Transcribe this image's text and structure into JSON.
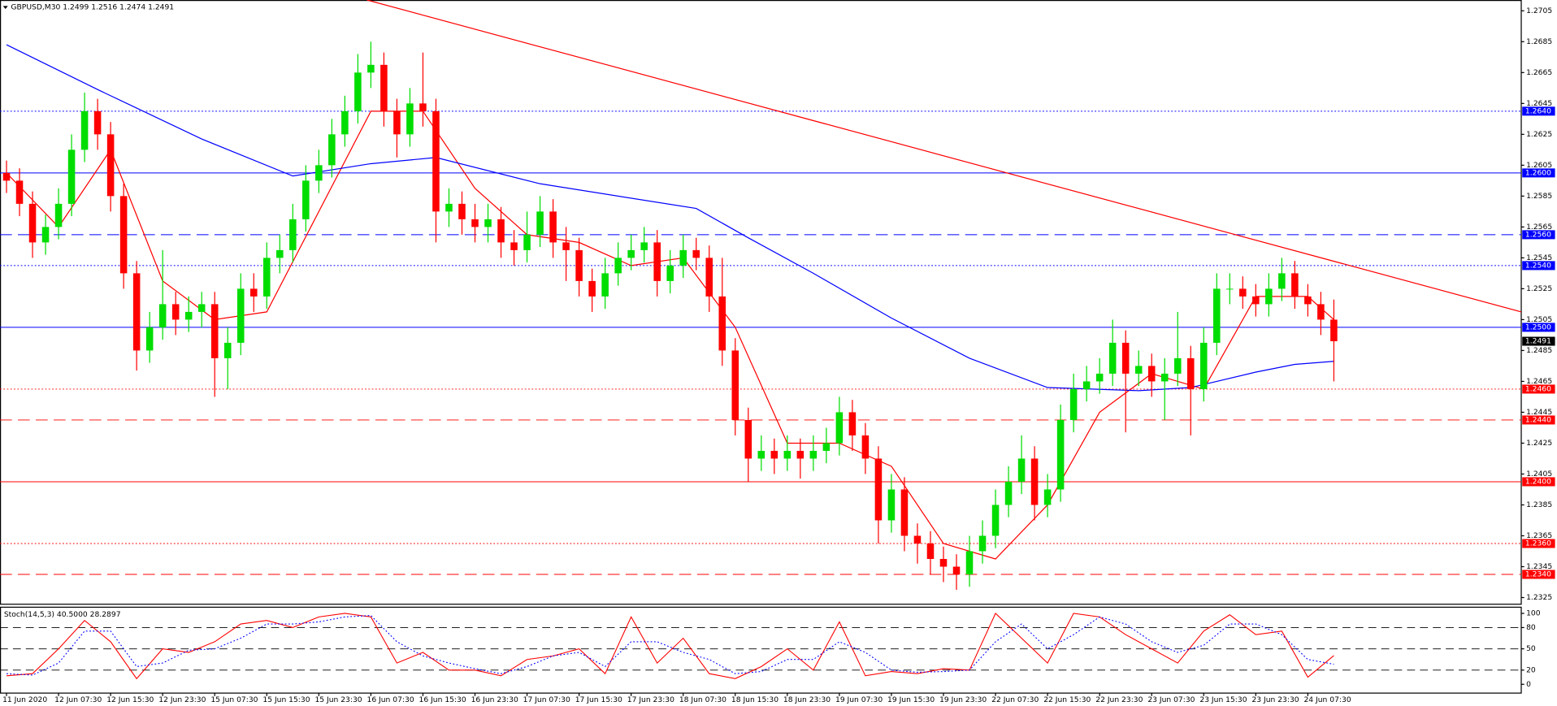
{
  "header": "GBPUSD,M30  1.2499 1.2516 1.2474 1.2491",
  "chart_data": [
    {
      "type": "candlestick",
      "categories": [
        "11 Jun 2020",
        null,
        null,
        null,
        "12 Jun 07:30",
        null,
        null,
        null,
        "12 Jun 15:30",
        null,
        null,
        null,
        "12 Jun 23:30",
        null,
        null,
        null,
        "15 Jun 07:30",
        null,
        null,
        null,
        "15 Jun 15:30",
        null,
        null,
        null,
        "15 Jun 23:30",
        null,
        null,
        null,
        "16 Jun 07:30",
        null,
        null,
        null,
        "16 Jun 15:30",
        null,
        null,
        null,
        "16 Jun 23:30",
        null,
        null,
        null,
        "17 Jun 07:30",
        null,
        null,
        null,
        "17 Jun 15:30",
        null,
        null,
        null,
        "17 Jun 23:30",
        null,
        null,
        null,
        "18 Jun 07:30",
        null,
        null,
        null,
        "18 Jun 15:30",
        null,
        null,
        null,
        "18 Jun 23:30",
        null,
        null,
        null,
        "19 Jun 07:30",
        null,
        null,
        null,
        "19 Jun 15:30",
        null,
        null,
        null,
        "19 Jun 23:30",
        null,
        null,
        null,
        "22 Jun 07:30",
        null,
        null,
        null,
        "22 Jun 15:30",
        null,
        null,
        null,
        "22 Jun 23:30",
        null,
        null,
        null,
        "23 Jun 07:30",
        null,
        null,
        null,
        "23 Jun 15:30",
        null,
        null,
        null,
        "23 Jun 23:30",
        null,
        null,
        null,
        "24 Jun 07:30",
        null,
        null
      ],
      "open": [
        1.26,
        1.2595,
        1.258,
        1.2555,
        1.2565,
        1.258,
        1.2615,
        1.264,
        1.2625,
        1.2585,
        1.2535,
        1.2485,
        1.25,
        1.2515,
        1.2505,
        1.251,
        1.2515,
        1.248,
        1.249,
        1.2525,
        1.252,
        1.2545,
        1.255,
        1.257,
        1.2595,
        1.2605,
        1.2625,
        1.264,
        1.2665,
        1.267,
        1.264,
        1.2625,
        1.2645,
        1.264,
        1.2575,
        1.258,
        1.257,
        1.2565,
        1.257,
        1.2555,
        1.255,
        1.256,
        1.2575,
        1.2555,
        1.255,
        1.253,
        1.252,
        1.2535,
        1.2545,
        1.255,
        1.2555,
        1.253,
        1.254,
        1.255,
        1.2545,
        1.252,
        1.2485,
        1.244,
        1.2415,
        1.242,
        1.2415,
        1.242,
        1.2415,
        1.242,
        1.2425,
        1.2445,
        1.243,
        1.2415,
        1.2375,
        1.2395,
        1.2365,
        1.236,
        1.235,
        1.2345,
        1.234,
        1.2355,
        1.2365,
        1.2385,
        1.24,
        1.2415,
        1.2385,
        1.2395,
        1.244,
        1.246,
        1.2465,
        1.247,
        1.249,
        1.247,
        1.2475,
        1.2465,
        1.247,
        1.248,
        1.246,
        1.249,
        1.2525,
        1.2525,
        1.252,
        1.2515,
        1.2525,
        1.2535,
        1.252,
        1.2515,
        1.2505
      ],
      "high": [
        1.2608,
        1.2603,
        1.2588,
        1.2573,
        1.259,
        1.2625,
        1.2652,
        1.2648,
        1.2633,
        1.2593,
        1.2543,
        1.251,
        1.255,
        1.2523,
        1.252,
        1.2523,
        1.2523,
        1.25,
        1.2535,
        1.2535,
        1.2555,
        1.256,
        1.258,
        1.2605,
        1.2615,
        1.2635,
        1.265,
        1.2677,
        1.2685,
        1.2678,
        1.2648,
        1.2655,
        1.2678,
        1.2648,
        1.259,
        1.2588,
        1.258,
        1.258,
        1.2578,
        1.2563,
        1.2575,
        1.2585,
        1.2583,
        1.2565,
        1.2558,
        1.2538,
        1.2545,
        1.2555,
        1.256,
        1.2565,
        1.2563,
        1.255,
        1.256,
        1.2558,
        1.2553,
        1.2545,
        1.2493,
        1.2448,
        1.243,
        1.2428,
        1.243,
        1.2428,
        1.243,
        1.2435,
        1.2455,
        1.2453,
        1.2438,
        1.2423,
        1.2405,
        1.2403,
        1.2373,
        1.2368,
        1.2358,
        1.2353,
        1.2365,
        1.2375,
        1.2395,
        1.241,
        1.243,
        1.2423,
        1.2405,
        1.245,
        1.247,
        1.2475,
        1.248,
        1.2505,
        1.2498,
        1.2485,
        1.2483,
        1.248,
        1.251,
        1.2488,
        1.25,
        1.2535,
        1.2535,
        1.2533,
        1.2528,
        1.2535,
        1.2545,
        1.2543,
        1.2528,
        1.2523,
        1.2518
      ],
      "low": [
        1.2587,
        1.2572,
        1.2545,
        1.2547,
        1.2557,
        1.2572,
        1.2607,
        1.2615,
        1.2575,
        1.2525,
        1.2472,
        1.2477,
        1.2492,
        1.2495,
        1.2497,
        1.25,
        1.2455,
        1.246,
        1.2482,
        1.251,
        1.2512,
        1.2535,
        1.2542,
        1.2562,
        1.2587,
        1.2597,
        1.2617,
        1.2632,
        1.2655,
        1.263,
        1.261,
        1.2617,
        1.263,
        1.2555,
        1.2565,
        1.256,
        1.2555,
        1.2555,
        1.2545,
        1.254,
        1.2542,
        1.2552,
        1.2545,
        1.253,
        1.252,
        1.251,
        1.2512,
        1.2527,
        1.2537,
        1.2542,
        1.252,
        1.2522,
        1.2532,
        1.2537,
        1.251,
        1.2475,
        1.243,
        1.24,
        1.2407,
        1.2405,
        1.2407,
        1.2402,
        1.2407,
        1.2412,
        1.2417,
        1.242,
        1.2405,
        1.236,
        1.2367,
        1.2355,
        1.2347,
        1.234,
        1.2335,
        1.233,
        1.2332,
        1.2347,
        1.2357,
        1.2377,
        1.2392,
        1.2375,
        1.2377,
        1.2387,
        1.2432,
        1.2452,
        1.2457,
        1.2462,
        1.2432,
        1.2462,
        1.2455,
        1.244,
        1.2462,
        1.243,
        1.2452,
        1.2482,
        1.2515,
        1.2512,
        1.2507,
        1.2507,
        1.2517,
        1.2512,
        1.2507,
        1.2495,
        1.2465
      ],
      "close": [
        1.2595,
        1.258,
        1.2555,
        1.2565,
        1.258,
        1.2615,
        1.264,
        1.2625,
        1.2585,
        1.2535,
        1.2485,
        1.25,
        1.2515,
        1.2505,
        1.251,
        1.2515,
        1.248,
        1.249,
        1.2525,
        1.252,
        1.2545,
        1.255,
        1.257,
        1.2595,
        1.2605,
        1.2625,
        1.264,
        1.2665,
        1.267,
        1.264,
        1.2625,
        1.2645,
        1.264,
        1.2575,
        1.258,
        1.257,
        1.2565,
        1.257,
        1.2555,
        1.255,
        1.256,
        1.2575,
        1.2555,
        1.255,
        1.253,
        1.252,
        1.2535,
        1.2545,
        1.255,
        1.2555,
        1.253,
        1.254,
        1.255,
        1.2545,
        1.252,
        1.2485,
        1.244,
        1.2415,
        1.242,
        1.2415,
        1.242,
        1.2415,
        1.242,
        1.2425,
        1.2445,
        1.243,
        1.2415,
        1.2375,
        1.2395,
        1.2365,
        1.236,
        1.235,
        1.2345,
        1.234,
        1.2355,
        1.2365,
        1.2385,
        1.24,
        1.2415,
        1.2385,
        1.2395,
        1.244,
        1.246,
        1.2465,
        1.247,
        1.249,
        1.247,
        1.2475,
        1.2465,
        1.247,
        1.248,
        1.246,
        1.249,
        1.2525,
        1.2525,
        1.252,
        1.2515,
        1.2525,
        1.2535,
        1.252,
        1.2515,
        1.2505,
        1.2491
      ],
      "up_color": "#00dd00",
      "down_color": "#ff0000",
      "xlim": [
        -0.5,
        116.4
      ],
      "ylim": [
        1.2321,
        1.2712
      ],
      "yticks": [
        1.2705,
        1.2685,
        1.2665,
        1.2645,
        1.2625,
        1.2605,
        1.2585,
        1.2565,
        1.2545,
        1.2525,
        1.2505,
        1.2485,
        1.2465,
        1.2445,
        1.2425,
        1.2405,
        1.2385,
        1.2365,
        1.2345,
        1.2325
      ],
      "moving_averages": [
        {
          "color": "#ff0000",
          "x": [
            0,
            4,
            8,
            12,
            16,
            20,
            24,
            28,
            32,
            36,
            40,
            44,
            48,
            52,
            56,
            60,
            64,
            68,
            72,
            76,
            80,
            84,
            88,
            92,
            96,
            100,
            102
          ],
          "values": [
            1.26,
            1.2565,
            1.2615,
            1.253,
            1.2505,
            1.251,
            1.2575,
            1.264,
            1.264,
            1.259,
            1.256,
            1.2555,
            1.254,
            1.2545,
            1.25,
            1.2425,
            1.2425,
            1.241,
            1.236,
            1.235,
            1.2385,
            1.2445,
            1.247,
            1.246,
            1.252,
            1.252,
            1.2505
          ]
        },
        {
          "color": "#0000ff",
          "x": [
            0,
            7,
            15,
            22,
            28,
            33,
            41,
            53,
            57,
            62,
            68,
            74,
            80,
            87,
            91,
            96,
            99,
            102
          ],
          "values": [
            1.2683,
            1.2654,
            1.2622,
            1.2598,
            1.2606,
            1.261,
            1.2593,
            1.2577,
            1.2558,
            1.2535,
            1.2506,
            1.248,
            1.2461,
            1.2459,
            1.2461,
            1.2471,
            1.2476,
            1.2478
          ]
        }
      ],
      "trendline": {
        "color": "#ff0000",
        "x": [
          27.7,
          116.4
        ],
        "values": [
          1.2712,
          1.251
        ]
      },
      "levels": [
        {
          "value": 1.264,
          "label": "1.2640",
          "color": "#0000ff",
          "style": "dotted"
        },
        {
          "value": 1.26,
          "label": "1.2600",
          "color": "#0000ff",
          "style": "solid"
        },
        {
          "value": 1.256,
          "label": "1.2560",
          "color": "#0000ff",
          "style": "dashed"
        },
        {
          "value": 1.254,
          "label": "1.2540",
          "color": "#0000ff",
          "style": "dotted"
        },
        {
          "value": 1.25,
          "label": "1.2500",
          "color": "#0000ff",
          "style": "solid"
        },
        {
          "value": 1.246,
          "label": "1.2460",
          "color": "#ff0000",
          "style": "dotted"
        },
        {
          "value": 1.244,
          "label": "1.2440",
          "color": "#ff0000",
          "style": "dashed"
        },
        {
          "value": 1.24,
          "label": "1.2400",
          "color": "#ff0000",
          "style": "solid"
        },
        {
          "value": 1.236,
          "label": "1.2360",
          "color": "#ff0000",
          "style": "dotted"
        },
        {
          "value": 1.234,
          "label": "1.2340",
          "color": "#ff0000",
          "style": "dashed"
        }
      ],
      "last_price": 1.2491
    },
    {
      "type": "line",
      "title": "Stoch(14,5,3) 40.5000 28.2897",
      "x": [
        0,
        2,
        4,
        6,
        8,
        10,
        12,
        14,
        16,
        18,
        20,
        22,
        24,
        26,
        28,
        30,
        32,
        34,
        36,
        38,
        40,
        42,
        44,
        46,
        48,
        50,
        52,
        54,
        56,
        58,
        60,
        62,
        64,
        66,
        68,
        70,
        72,
        74,
        76,
        78,
        80,
        82,
        84,
        86,
        88,
        90,
        92,
        94,
        96,
        98,
        100,
        102
      ],
      "series": [
        {
          "color": "#ff0000",
          "style": "solid",
          "values": [
            12,
            15,
            50,
            90,
            60,
            8,
            50,
            45,
            60,
            85,
            90,
            80,
            95,
            100,
            95,
            30,
            45,
            20,
            20,
            12,
            35,
            40,
            50,
            15,
            95,
            30,
            65,
            15,
            8,
            25,
            50,
            20,
            88,
            12,
            18,
            15,
            22,
            20,
            100,
            65,
            30,
            100,
            95,
            70,
            50,
            30,
            75,
            98,
            70,
            75,
            10,
            40.5
          ]
        },
        {
          "color": "#0000ff",
          "style": "dotted",
          "values": [
            15,
            13,
            30,
            75,
            75,
            25,
            30,
            48,
            50,
            65,
            85,
            85,
            88,
            95,
            97,
            60,
            40,
            30,
            22,
            15,
            25,
            40,
            45,
            25,
            60,
            60,
            45,
            35,
            15,
            18,
            35,
            35,
            60,
            45,
            20,
            17,
            18,
            20,
            60,
            85,
            50,
            70,
            95,
            85,
            60,
            45,
            55,
            85,
            85,
            70,
            35,
            28.2897
          ]
        }
      ],
      "xlim": [
        -0.5,
        116.4
      ],
      "ylim": [
        -11,
        108
      ],
      "yticks": [
        0,
        20,
        50,
        80,
        100
      ]
    }
  ]
}
